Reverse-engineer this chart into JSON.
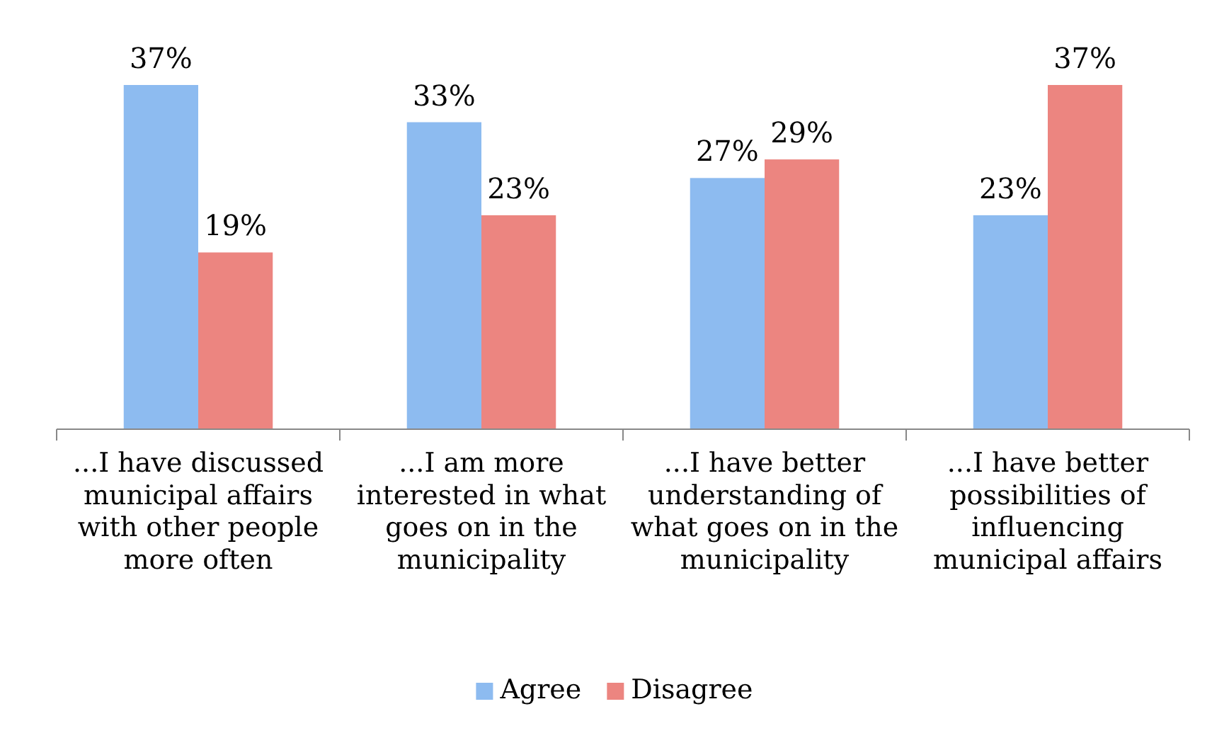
{
  "chart_data": {
    "type": "bar",
    "categories": [
      "...I have discussed municipal affairs with other people more often",
      "...I am more interested in what goes on in the municipality",
      "...I have better understanding of what goes on in the municipality",
      "...I have better possibilities of influencing municipal affairs"
    ],
    "series": [
      {
        "name": "Agree",
        "color": "#8dbbf0",
        "values": [
          37,
          33,
          27,
          23
        ],
        "value_labels": [
          "37%",
          "33%",
          "27%",
          "23%"
        ]
      },
      {
        "name": "Disagree",
        "color": "#ec8580",
        "values": [
          19,
          23,
          29,
          37
        ],
        "value_labels": [
          "19%",
          "23%",
          "29%",
          "37%"
        ]
      }
    ],
    "legend": "bottom"
  }
}
